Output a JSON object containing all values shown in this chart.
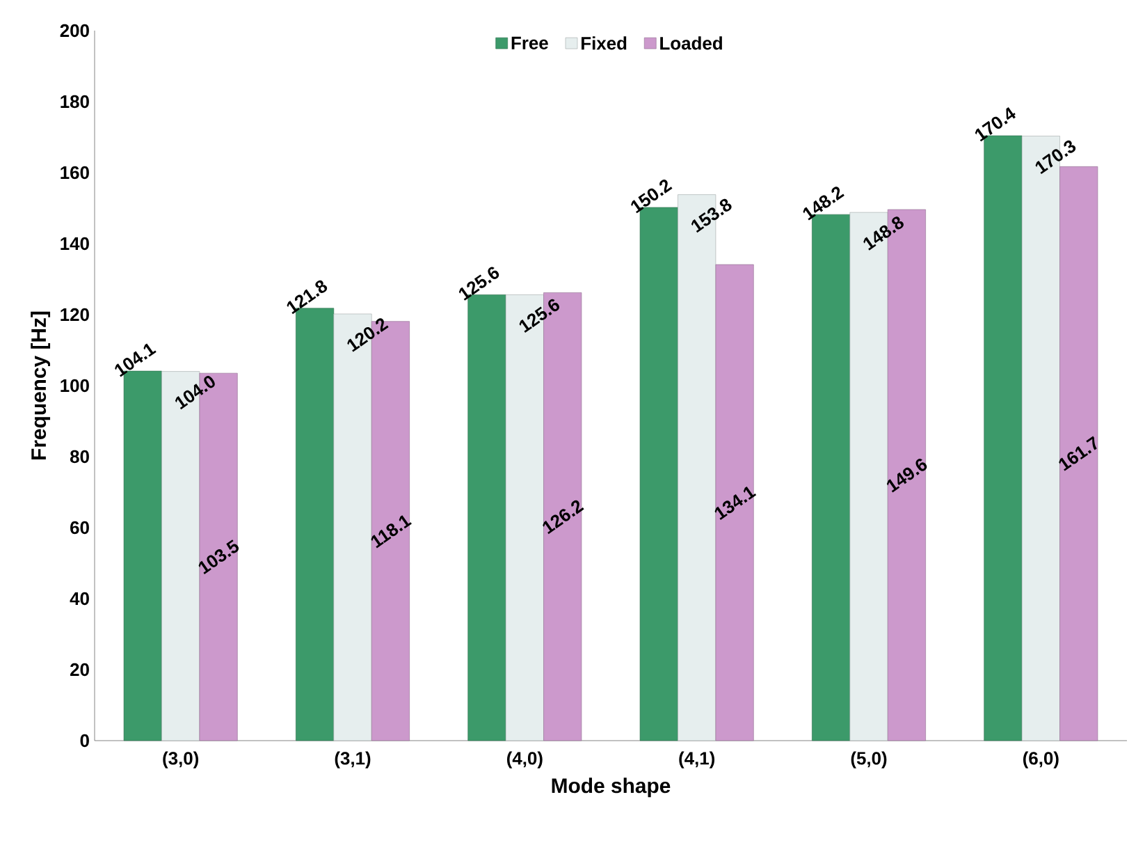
{
  "chart_data": {
    "type": "bar",
    "xlabel": "Mode shape",
    "ylabel": "Frequency [Hz]",
    "categories": [
      "(3,0)",
      "(3,1)",
      "(4,0)",
      "(4,1)",
      "(5,0)",
      "(6,0)"
    ],
    "series": [
      {
        "name": "Free",
        "color": "#3c9a6a",
        "values": [
          104.1,
          121.8,
          125.6,
          150.2,
          148.2,
          170.4
        ],
        "value_labels": [
          "104.1",
          "121.8",
          "125.6",
          "150.2",
          "148.2",
          "170.4"
        ]
      },
      {
        "name": "Fixed",
        "color": "#e6eeee",
        "values": [
          104.0,
          120.2,
          125.6,
          153.8,
          148.8,
          170.3
        ],
        "value_labels": [
          "104.0",
          "120.2",
          "125.6",
          "153.8",
          "148.8",
          "170.3"
        ]
      },
      {
        "name": "Loaded",
        "color": "#cc99cc",
        "values": [
          103.5,
          118.1,
          126.2,
          134.1,
          149.6,
          161.7
        ],
        "value_labels": [
          "103.5",
          "118.1",
          "126.2",
          "134.1",
          "149.6",
          "161.7"
        ]
      }
    ],
    "ylim": [
      0,
      200
    ],
    "yticks": [
      0,
      20,
      40,
      60,
      80,
      100,
      120,
      140,
      160,
      180,
      200
    ],
    "legend": "top",
    "grid": false
  }
}
